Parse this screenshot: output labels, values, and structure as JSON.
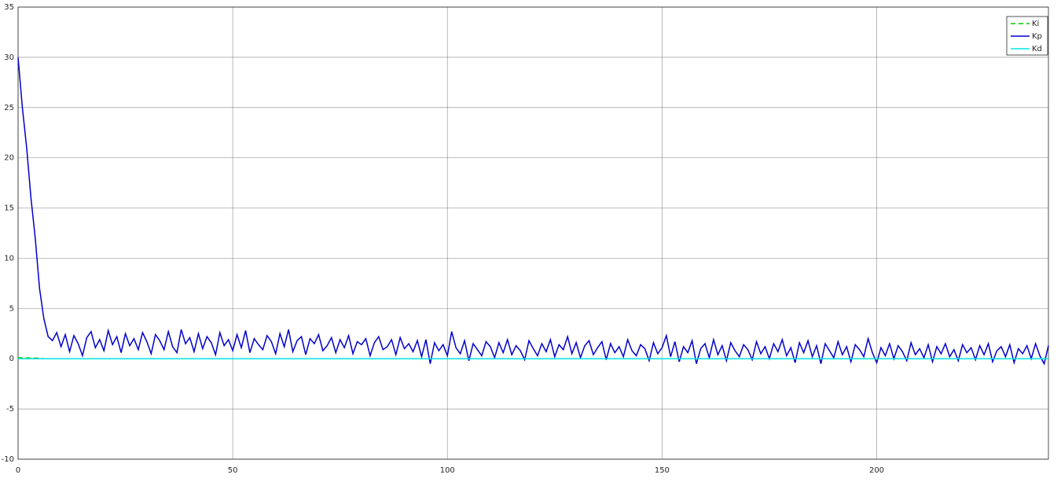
{
  "chart_data": {
    "type": "line",
    "xlim": [
      0,
      240
    ],
    "ylim": [
      -10,
      35
    ],
    "xticks": [
      0,
      50,
      100,
      150,
      200
    ],
    "yticks": [
      -10,
      -5,
      0,
      5,
      10,
      15,
      20,
      25,
      30,
      35
    ],
    "grid": true,
    "legend": "top-right",
    "series": [
      {
        "name": "Ki",
        "color": "#00cc00",
        "dash": true,
        "x": [
          0,
          5,
          6,
          240
        ],
        "values": [
          0.1,
          0.05,
          0,
          0
        ]
      },
      {
        "name": "Kp",
        "color": "#0000cc",
        "dash": false,
        "x": [
          0,
          1,
          2,
          3,
          4,
          5,
          6,
          7,
          8,
          9,
          10,
          11,
          12,
          13,
          14,
          15,
          16,
          17,
          18,
          19,
          20,
          21,
          22,
          23,
          24,
          25,
          26,
          27,
          28,
          29,
          30,
          31,
          32,
          33,
          34,
          35,
          36,
          37,
          38,
          39,
          40,
          41,
          42,
          43,
          44,
          45,
          46,
          47,
          48,
          49,
          50,
          51,
          52,
          53,
          54,
          55,
          56,
          57,
          58,
          59,
          60,
          61,
          62,
          63,
          64,
          65,
          66,
          67,
          68,
          69,
          70,
          71,
          72,
          73,
          74,
          75,
          76,
          77,
          78,
          79,
          80,
          81,
          82,
          83,
          84,
          85,
          86,
          87,
          88,
          89,
          90,
          91,
          92,
          93,
          94,
          95,
          96,
          97,
          98,
          99,
          100,
          101,
          102,
          103,
          104,
          105,
          106,
          107,
          108,
          109,
          110,
          111,
          112,
          113,
          114,
          115,
          116,
          117,
          118,
          119,
          120,
          121,
          122,
          123,
          124,
          125,
          126,
          127,
          128,
          129,
          130,
          131,
          132,
          133,
          134,
          135,
          136,
          137,
          138,
          139,
          140,
          141,
          142,
          143,
          144,
          145,
          146,
          147,
          148,
          149,
          150,
          151,
          152,
          153,
          154,
          155,
          156,
          157,
          158,
          159,
          160,
          161,
          162,
          163,
          164,
          165,
          166,
          167,
          168,
          169,
          170,
          171,
          172,
          173,
          174,
          175,
          176,
          177,
          178,
          179,
          180,
          181,
          182,
          183,
          184,
          185,
          186,
          187,
          188,
          189,
          190,
          191,
          192,
          193,
          194,
          195,
          196,
          197,
          198,
          199,
          200,
          201,
          202,
          203,
          204,
          205,
          206,
          207,
          208,
          209,
          210,
          211,
          212,
          213,
          214,
          215,
          216,
          217,
          218,
          219,
          220,
          221,
          222,
          223,
          224,
          225,
          226,
          227,
          228,
          229,
          230,
          231,
          232,
          233,
          234,
          235,
          236,
          237,
          238,
          239,
          240
        ],
        "values": [
          30,
          25,
          21,
          16,
          12,
          7,
          4,
          2.2,
          1.8,
          2.6,
          1.2,
          2.4,
          0.7,
          2.3,
          1.5,
          0.3,
          2.1,
          2.7,
          1.1,
          1.9,
          0.8,
          2.8,
          1.4,
          2.2,
          0.6,
          2.5,
          1.3,
          2.0,
          0.9,
          2.6,
          1.7,
          0.5,
          2.4,
          1.8,
          0.9,
          2.7,
          1.2,
          0.6,
          2.9,
          1.5,
          2.1,
          0.7,
          2.5,
          1.0,
          2.2,
          1.6,
          0.4,
          2.6,
          1.3,
          1.9,
          0.8,
          2.4,
          1.1,
          2.8,
          0.6,
          2.0,
          1.4,
          0.9,
          2.3,
          1.7,
          0.5,
          2.5,
          1.2,
          2.9,
          0.7,
          1.8,
          2.2,
          0.4,
          2.0,
          1.5,
          2.4,
          0.8,
          1.3,
          2.1,
          0.6,
          1.9,
          1.1,
          2.3,
          0.5,
          1.7,
          1.4,
          2.0,
          0.3,
          1.6,
          2.2,
          0.9,
          1.2,
          1.9,
          0.4,
          2.1,
          1.0,
          1.5,
          0.7,
          1.8,
          0.2,
          1.9,
          -0.5,
          1.6,
          0.8,
          1.4,
          0.3,
          2.7,
          1.1,
          0.5,
          1.8,
          -0.2,
          1.5,
          0.9,
          0.3,
          1.7,
          1.2,
          0.1,
          1.6,
          0.6,
          1.9,
          0.4,
          1.3,
          0.8,
          -0.1,
          1.8,
          1.0,
          0.3,
          1.5,
          0.7,
          1.9,
          0.2,
          1.4,
          0.9,
          2.2,
          0.5,
          1.6,
          0.1,
          1.3,
          1.8,
          0.4,
          1.1,
          1.7,
          -0.1,
          1.5,
          0.6,
          1.2,
          0.2,
          1.9,
          0.8,
          0.3,
          1.4,
          1.0,
          -0.2,
          1.6,
          0.5,
          1.1,
          2.3,
          0.2,
          1.7,
          -0.3,
          1.2,
          0.6,
          1.8,
          -0.5,
          1.0,
          1.5,
          0.1,
          1.9,
          0.4,
          1.3,
          -0.2,
          1.6,
          0.8,
          0.2,
          1.4,
          0.9,
          -0.1,
          1.7,
          0.5,
          1.2,
          0.0,
          1.5,
          0.7,
          1.9,
          0.3,
          1.1,
          -0.4,
          1.6,
          0.6,
          1.8,
          0.2,
          1.3,
          -0.5,
          1.5,
          0.8,
          0.1,
          1.7,
          0.4,
          1.2,
          -0.3,
          1.4,
          0.9,
          0.2,
          2.0,
          0.6,
          -0.4,
          1.1,
          0.3,
          1.5,
          0.0,
          1.3,
          0.7,
          -0.2,
          1.6,
          0.4,
          1.0,
          0.1,
          1.4,
          -0.3,
          1.2,
          0.5,
          1.5,
          0.2,
          0.9,
          -0.2,
          1.4,
          0.6,
          1.1,
          -0.1,
          1.3,
          0.4,
          1.5,
          -0.3,
          0.8,
          1.2,
          0.2,
          1.4,
          -0.4,
          1.0,
          0.5,
          1.3,
          0.0,
          1.5,
          0.3,
          -0.5,
          1.3
        ]
      },
      {
        "name": "Kd",
        "color": "#00e5e5",
        "dash": false,
        "x": [
          0,
          240
        ],
        "values": [
          0,
          0
        ]
      }
    ]
  }
}
